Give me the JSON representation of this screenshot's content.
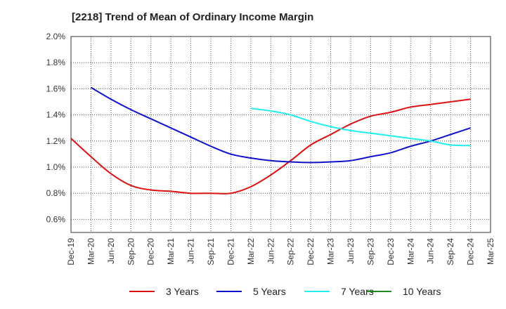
{
  "chart_data": {
    "type": "line",
    "title": "[2218]  Trend of Mean of Ordinary Income Margin",
    "xlabel": "",
    "ylabel": "",
    "categories": [
      "Dec-19",
      "Mar-20",
      "Jun-20",
      "Sep-20",
      "Dec-20",
      "Mar-21",
      "Jun-21",
      "Sep-21",
      "Dec-21",
      "Mar-22",
      "Jun-22",
      "Sep-22",
      "Dec-22",
      "Mar-23",
      "Jun-23",
      "Sep-23",
      "Dec-23",
      "Mar-24",
      "Jun-24",
      "Sep-24",
      "Dec-24",
      "Mar-25"
    ],
    "ylim": [
      0.5,
      2.0
    ],
    "yticks": [
      "0.6%",
      "0.8%",
      "1.0%",
      "1.2%",
      "1.4%",
      "1.6%",
      "1.8%",
      "2.0%"
    ],
    "ytick_values": [
      0.6,
      0.8,
      1.0,
      1.2,
      1.4,
      1.6,
      1.8,
      2.0
    ],
    "grid": true,
    "legend_position": "bottom",
    "series": [
      {
        "name": "3 Years",
        "color": "#dd1111",
        "values": [
          1.22,
          1.08,
          0.95,
          0.86,
          0.825,
          0.815,
          0.8,
          0.8,
          0.8,
          0.85,
          0.94,
          1.05,
          1.17,
          1.25,
          1.33,
          1.39,
          1.42,
          1.46,
          1.48,
          1.5,
          1.52,
          null
        ]
      },
      {
        "name": "5 Years",
        "color": "#1111cc",
        "values": [
          null,
          1.61,
          1.52,
          1.44,
          1.37,
          1.3,
          1.23,
          1.16,
          1.1,
          1.07,
          1.05,
          1.04,
          1.035,
          1.04,
          1.05,
          1.08,
          1.11,
          1.16,
          1.2,
          1.25,
          1.3,
          null
        ]
      },
      {
        "name": "7 Years",
        "color": "#22eeee",
        "values": [
          null,
          null,
          null,
          null,
          null,
          null,
          null,
          null,
          null,
          1.45,
          1.43,
          1.4,
          1.35,
          1.31,
          1.28,
          1.26,
          1.24,
          1.22,
          1.2,
          1.17,
          1.165,
          null
        ]
      },
      {
        "name": "10 Years",
        "color": "#228822",
        "values": [
          null,
          null,
          null,
          null,
          null,
          null,
          null,
          null,
          null,
          null,
          null,
          null,
          null,
          null,
          null,
          null,
          null,
          null,
          null,
          null,
          null,
          null
        ]
      }
    ]
  }
}
